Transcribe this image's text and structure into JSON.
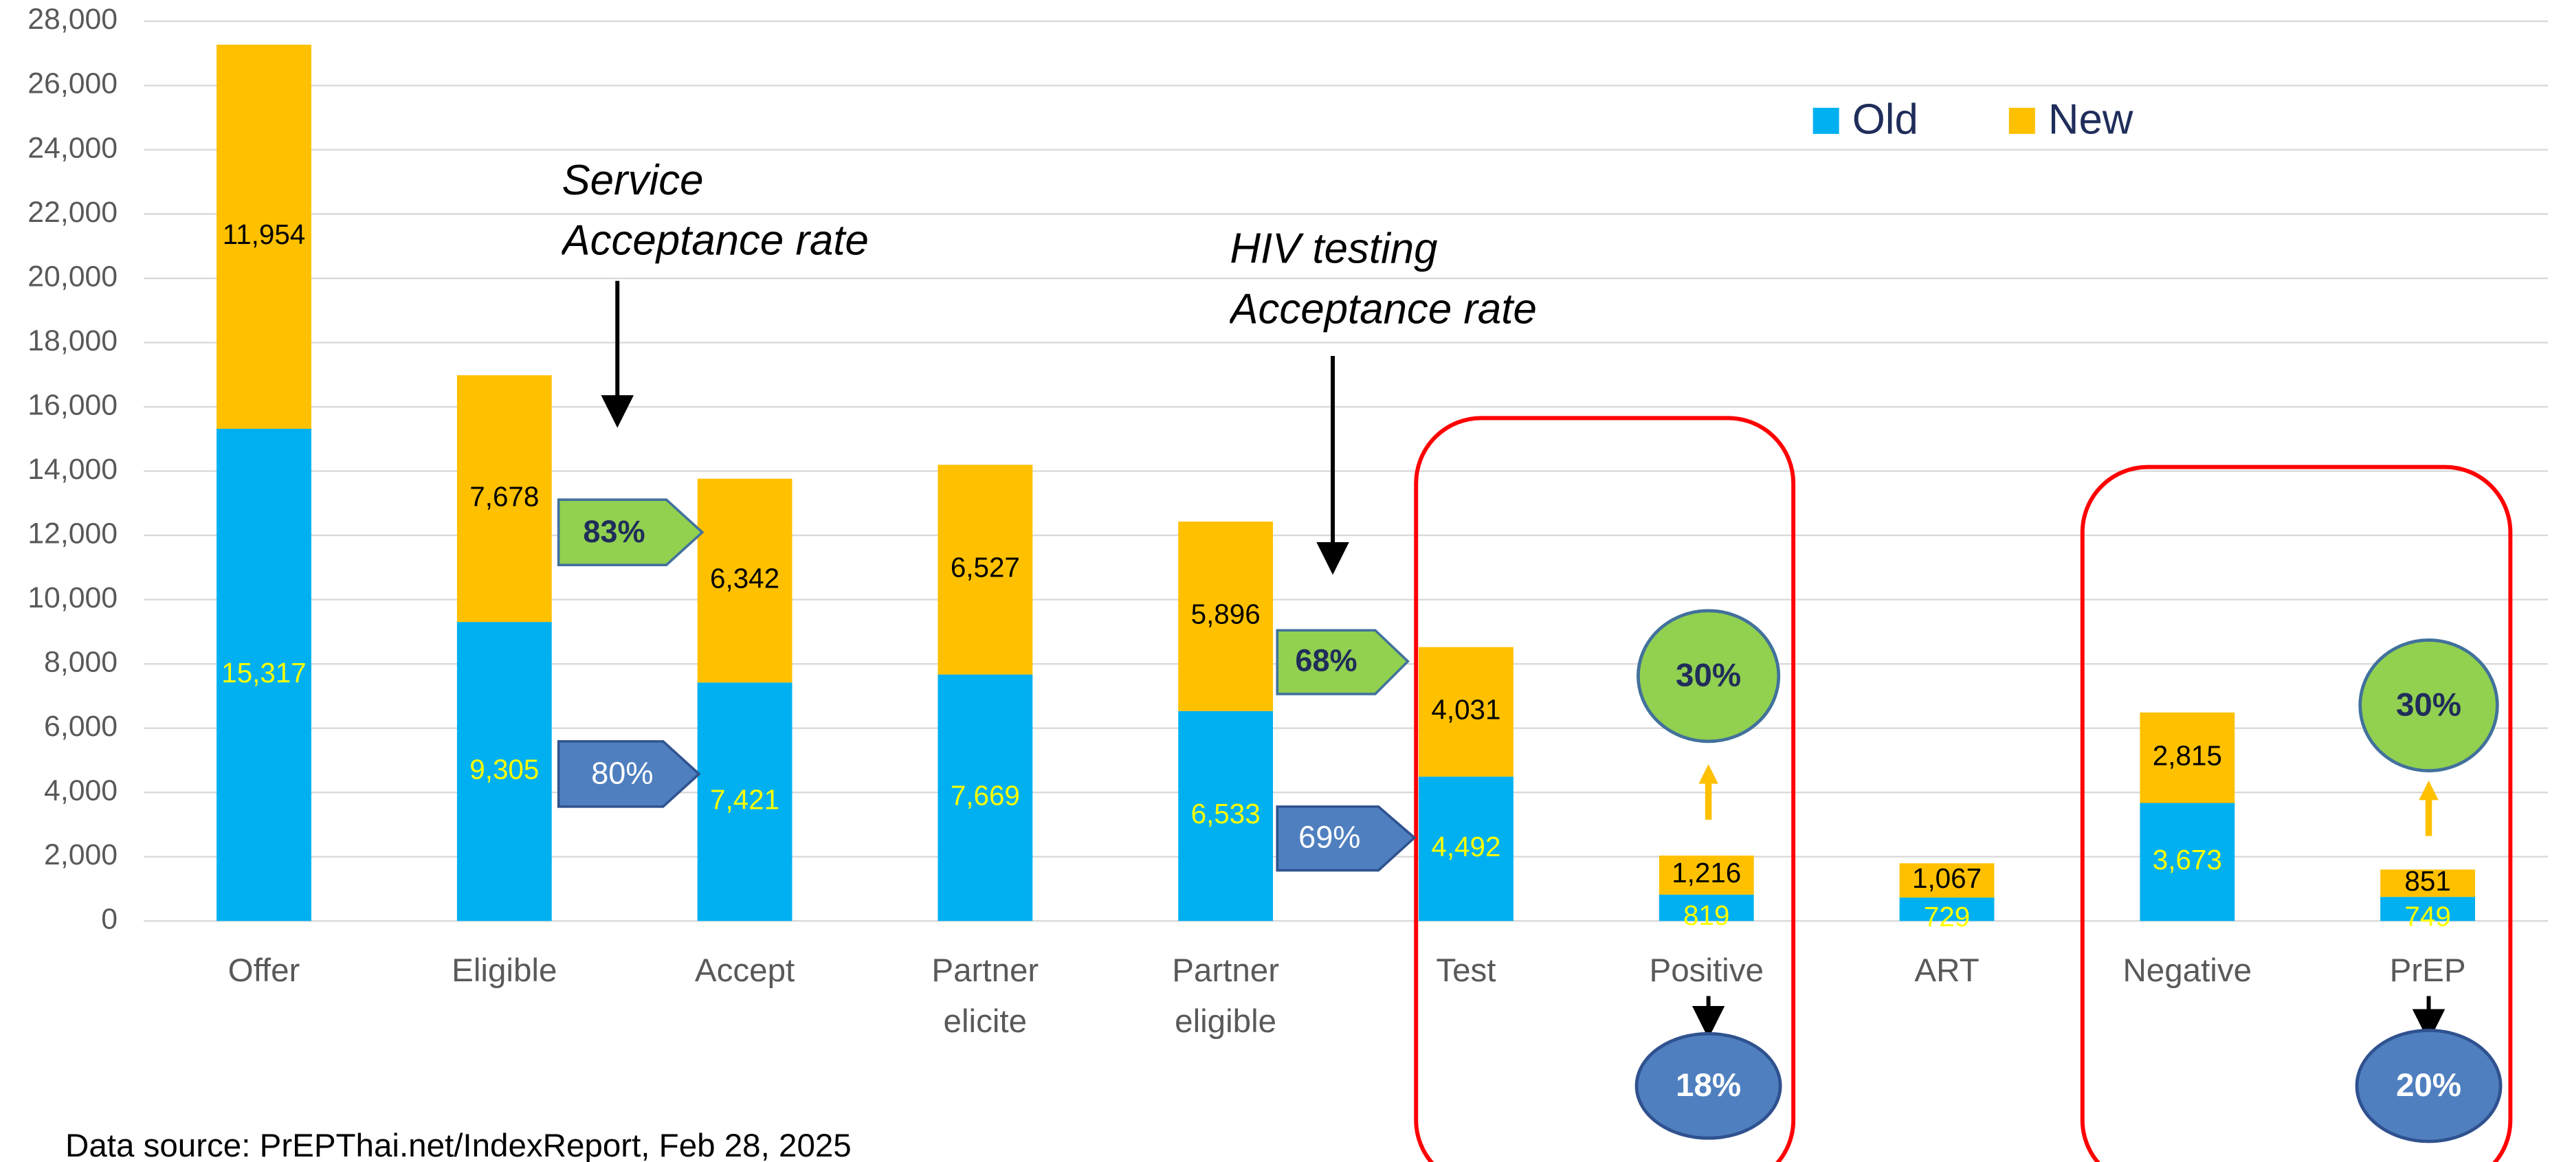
{
  "chart_data": {
    "type": "stacked_bar",
    "categories": [
      "Offer",
      "Eligible",
      "Accept",
      "Partner elicite",
      "Partner eligible",
      "Test",
      "Positive",
      "ART",
      "Negative",
      "PrEP"
    ],
    "series": [
      {
        "name": "Old",
        "color": "#00b0f0",
        "values": [
          15317,
          9305,
          7421,
          7669,
          6533,
          4492,
          819,
          729,
          3673,
          749
        ],
        "value_labels": [
          "15,317",
          "9,305",
          "7,421",
          "7,669",
          "6,533",
          "4,492",
          "819",
          "729",
          "3,673",
          "749"
        ]
      },
      {
        "name": "New",
        "color": "#ffc000",
        "values": [
          11954,
          7678,
          6342,
          6527,
          5896,
          4031,
          1216,
          1067,
          2815,
          851
        ],
        "value_labels": [
          "11,954",
          "7,678",
          "6,342",
          "6,527",
          "5,896",
          "4,031",
          "1,216",
          "1,067",
          "2,815",
          "851"
        ]
      }
    ],
    "ylim": [
      0,
      28000
    ],
    "yticks": [
      0,
      {
        "value": 2000,
        "label": "2,000"
      },
      {
        "value": 4000,
        "label": "4,000"
      },
      {
        "value": 6000,
        "label": "6,000"
      },
      {
        "value": 8000,
        "label": "8,000"
      },
      {
        "value": 10000,
        "label": "10,000"
      },
      {
        "value": 12000,
        "label": "12,000"
      },
      {
        "value": 14000,
        "label": "14,000"
      },
      {
        "value": 16000,
        "label": "16,000"
      },
      {
        "value": 18000,
        "label": "18,000"
      },
      {
        "value": 20000,
        "label": "20,000"
      },
      {
        "value": 22000,
        "label": "22,000"
      },
      {
        "value": 24000,
        "label": "24,000"
      },
      {
        "value": 26000,
        "label": "26,000"
      },
      {
        "value": 28000,
        "label": "28,000"
      }
    ],
    "grid": true,
    "legend": "top-right",
    "annotations": {
      "service_rate": "Service Acceptance rate",
      "hiv_testing_rate": "HIV testing Acceptance rate",
      "arrows": [
        "83%",
        "80%",
        "68%",
        "69%"
      ],
      "circles": [
        "30%",
        "18%",
        "30%",
        "20%"
      ]
    },
    "source": "Data source: PrEPThai.net/IndexReport, Feb 28, 2025"
  }
}
